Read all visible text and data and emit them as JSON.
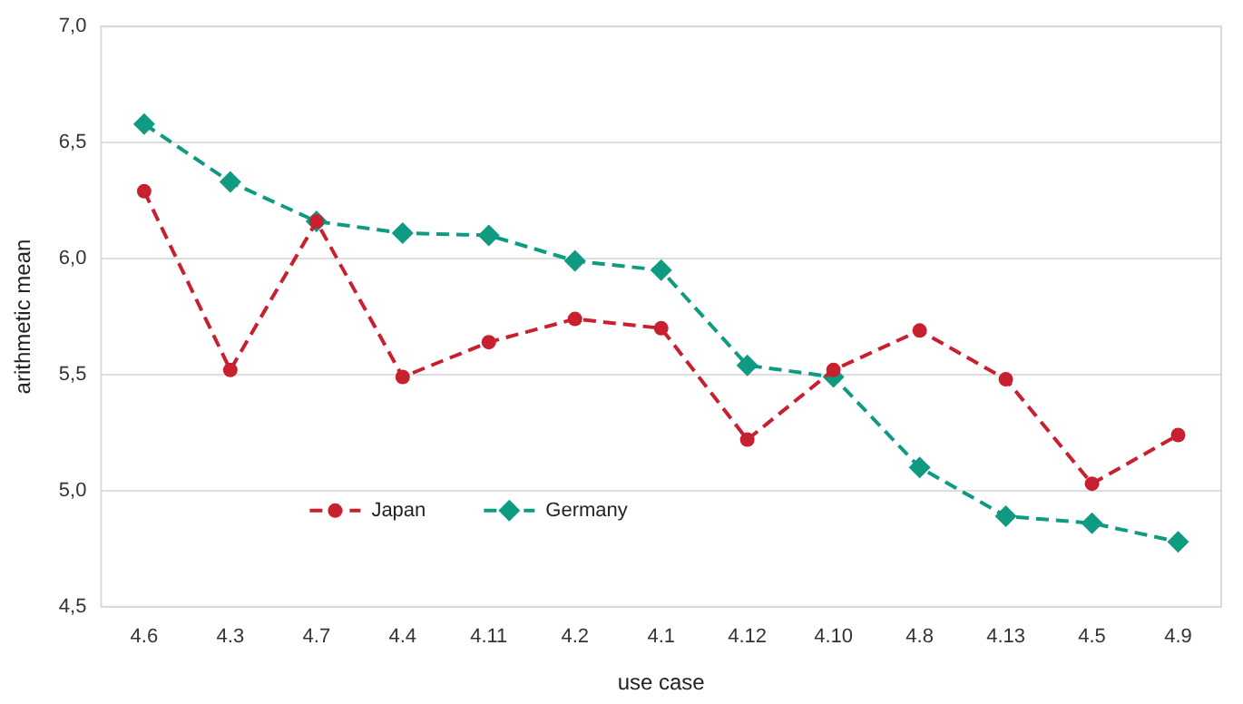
{
  "chart_data": {
    "type": "line",
    "xlabel": "use case",
    "ylabel": "arithmetic mean",
    "categories": [
      "4.6",
      "4.3",
      "4.7",
      "4.4",
      "4.11",
      "4.2",
      "4.1",
      "4.12",
      "4.10",
      "4.8",
      "4.13",
      "4.5",
      "4.9"
    ],
    "series": [
      {
        "name": "Japan",
        "color": "#c8202f",
        "marker": "circle",
        "line_style": "dashed",
        "values": [
          6.29,
          5.52,
          6.16,
          5.49,
          5.64,
          5.74,
          5.7,
          5.22,
          5.52,
          5.69,
          5.48,
          5.03,
          5.24
        ]
      },
      {
        "name": "Germany",
        "color": "#0f9a82",
        "marker": "diamond",
        "line_style": "dashed",
        "values": [
          6.58,
          6.33,
          6.16,
          6.11,
          6.1,
          5.99,
          5.95,
          5.54,
          5.49,
          5.1,
          4.89,
          4.86,
          4.78
        ]
      }
    ],
    "ylim": [
      4.5,
      7.0
    ],
    "yticks": [
      {
        "value": 4.5,
        "label": "4,5"
      },
      {
        "value": 5.0,
        "label": "5,0"
      },
      {
        "value": 5.5,
        "label": "5,5"
      },
      {
        "value": 6.0,
        "label": "6,0"
      },
      {
        "value": 6.5,
        "label": "6,5"
      },
      {
        "value": 7.0,
        "label": "7,0"
      }
    ],
    "grid": "y",
    "legend": "bottom left"
  }
}
